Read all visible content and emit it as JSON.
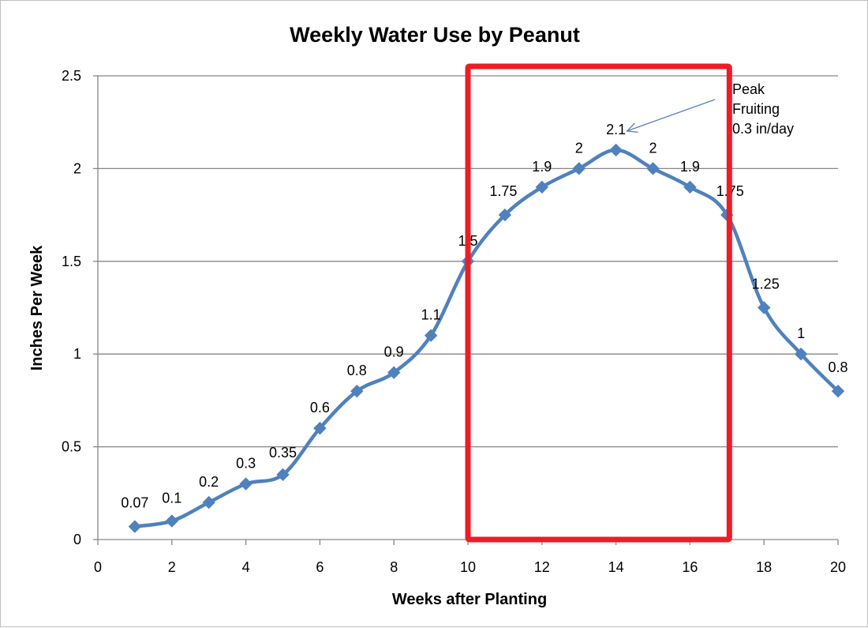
{
  "chart_data": {
    "type": "line",
    "title": "Weekly Water Use by Peanut",
    "xlabel": "Weeks after Planting",
    "ylabel": "Inches Per Week",
    "xlim": [
      0,
      20
    ],
    "ylim": [
      0,
      2.5
    ],
    "x_ticks": [
      0,
      2,
      4,
      6,
      8,
      10,
      12,
      14,
      16,
      18,
      20
    ],
    "y_ticks": [
      0,
      0.5,
      1,
      1.5,
      2,
      2.5
    ],
    "grid": "horizontal",
    "legend": "none",
    "series": [
      {
        "color": "#4f81bd",
        "marker": "diamond",
        "smooth": true,
        "x": [
          1,
          2,
          3,
          4,
          5,
          6,
          7,
          8,
          9,
          10,
          11,
          12,
          13,
          14,
          15,
          16,
          17,
          18,
          19,
          20
        ],
        "values": [
          0.07,
          0.1,
          0.2,
          0.3,
          0.35,
          0.6,
          0.8,
          0.9,
          1.1,
          1.5,
          1.75,
          1.9,
          2,
          2.1,
          2,
          1.9,
          1.75,
          1.25,
          1,
          0.8
        ],
        "data_labels": [
          "0.07",
          "0.1",
          "0.2",
          "0.3",
          "0.35",
          "0.6",
          "0.8",
          "0.9",
          "1.1",
          "1.5",
          "1.75",
          "1.9",
          "2",
          "2.1",
          "2",
          "1.9",
          "1.75",
          "1.25",
          "1",
          "0.8"
        ]
      }
    ],
    "annotations": [
      {
        "lines": [
          "Peak",
          "Fruiting",
          "0.3 in/day"
        ],
        "points_to": [
          14,
          2.1
        ]
      }
    ],
    "highlight_box": {
      "x_range": [
        10,
        17
      ],
      "y_range": [
        0,
        2.5
      ],
      "color": "#ee1c25"
    }
  }
}
